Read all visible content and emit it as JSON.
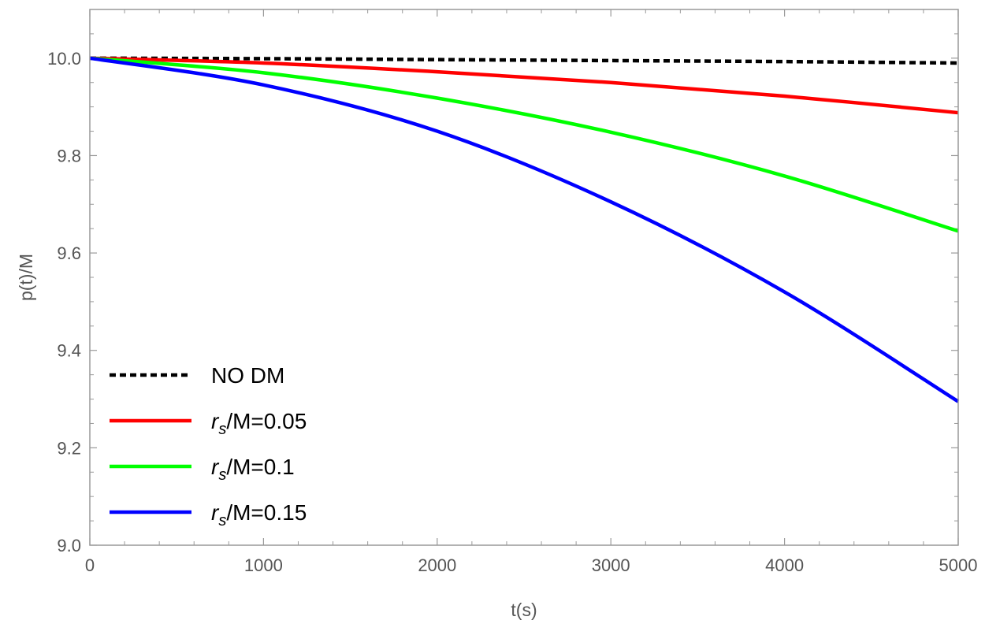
{
  "chart_data": {
    "type": "line",
    "title": "",
    "xlabel": "t(s)",
    "ylabel": "p(t)/M",
    "xlim": [
      0,
      5000
    ],
    "ylim": [
      9.0,
      10.1
    ],
    "xticks": [
      0,
      1000,
      2000,
      3000,
      4000,
      5000
    ],
    "xtick_labels": [
      "0",
      "1000",
      "2000",
      "3000",
      "4000",
      "5000"
    ],
    "yticks": [
      9.0,
      9.2,
      9.4,
      9.6,
      9.8,
      10.0
    ],
    "ytick_labels": [
      "9.0",
      "9.2",
      "9.4",
      "9.6",
      "9.8",
      "10.0"
    ],
    "legend_position": "bottom-left",
    "series": [
      {
        "name": "NO DM",
        "legend_main": "NO DM",
        "legend_sub": "",
        "legend_rest": "",
        "color": "#000000",
        "dashed": true,
        "x": [
          0,
          1000,
          2000,
          3000,
          4000,
          5000
        ],
        "y": [
          10.0,
          9.999,
          9.997,
          9.995,
          9.993,
          9.99
        ]
      },
      {
        "name": "r_s/M=0.05",
        "legend_main": "r",
        "legend_sub": "s",
        "legend_rest": "/M=0.05",
        "color": "#ff0000",
        "dashed": false,
        "x": [
          0,
          1000,
          2000,
          3000,
          4000,
          5000
        ],
        "y": [
          10.0,
          9.99,
          9.972,
          9.95,
          9.922,
          9.888
        ]
      },
      {
        "name": "r_s/M=0.1",
        "legend_main": "r",
        "legend_sub": "s",
        "legend_rest": "/M=0.1",
        "color": "#00ff00",
        "dashed": false,
        "x": [
          0,
          1000,
          2000,
          3000,
          4000,
          5000
        ],
        "y": [
          10.0,
          9.97,
          9.918,
          9.848,
          9.758,
          9.645
        ]
      },
      {
        "name": "r_s/M=0.15",
        "legend_main": "r",
        "legend_sub": "s",
        "legend_rest": "/M=0.15",
        "color": "#0000ff",
        "dashed": false,
        "x": [
          0,
          1000,
          2000,
          3000,
          4000,
          5000
        ],
        "y": [
          10.0,
          9.945,
          9.85,
          9.705,
          9.52,
          9.295
        ]
      }
    ]
  }
}
